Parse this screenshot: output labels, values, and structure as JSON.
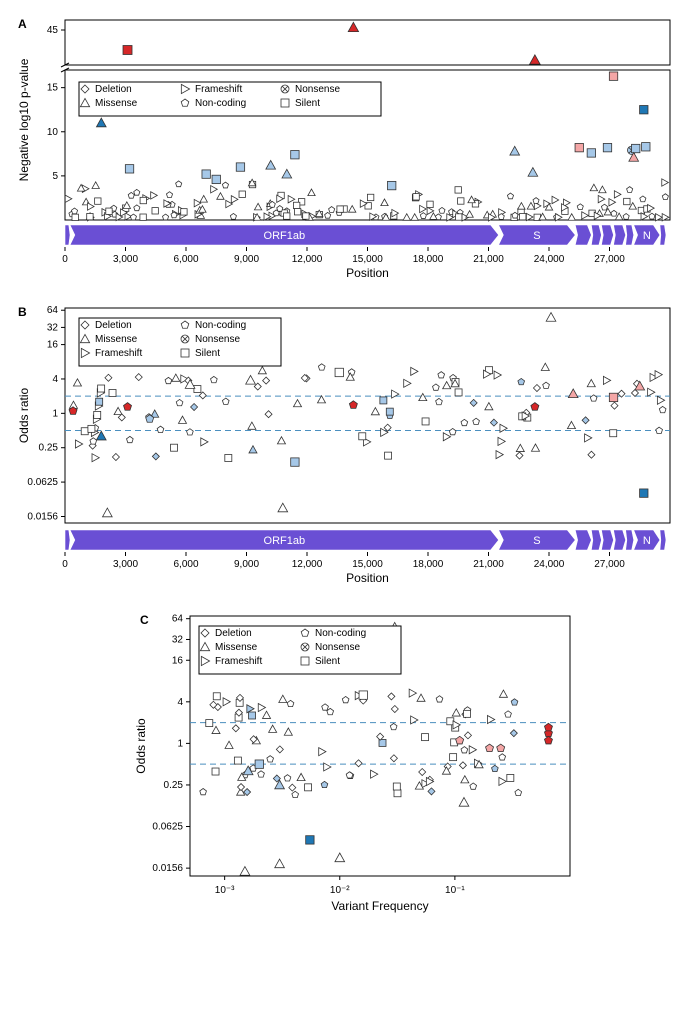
{
  "colors": {
    "red": "#d62728",
    "lightred": "#f4a6a6",
    "blue": "#1f77b4",
    "lightblue": "#a6c8e8",
    "gray": "#888888",
    "lightgray": "#cccccc",
    "white": "#ffffff",
    "black": "#000000",
    "purple": "#6a4fd4",
    "dashblue": "#4a8fbf",
    "border": "#000000"
  },
  "legend_items": [
    {
      "label": "Deletion",
      "marker": "diamond"
    },
    {
      "label": "Missense",
      "marker": "triangle"
    },
    {
      "label": "Frameshift",
      "marker": "rtriangle"
    },
    {
      "label": "Non-coding",
      "marker": "pentagon"
    },
    {
      "label": "Nonsense",
      "marker": "xcircle"
    },
    {
      "label": "Silent",
      "marker": "square"
    }
  ],
  "genes": [
    {
      "start": 0,
      "end": 250,
      "label": ""
    },
    {
      "start": 250,
      "end": 21500,
      "label": "ORF1ab"
    },
    {
      "start": 21500,
      "end": 25300,
      "label": "S"
    },
    {
      "start": 25300,
      "end": 26100,
      "label": ""
    },
    {
      "start": 26100,
      "end": 26600,
      "label": ""
    },
    {
      "start": 26600,
      "end": 27200,
      "label": ""
    },
    {
      "start": 27200,
      "end": 27800,
      "label": ""
    },
    {
      "start": 27800,
      "end": 28200,
      "label": ""
    },
    {
      "start": 28200,
      "end": 29500,
      "label": "N"
    },
    {
      "start": 29500,
      "end": 29800,
      "label": ""
    }
  ],
  "panelA": {
    "label": "A",
    "xlabel": "Position",
    "ylabel": "Negative log10 p-value",
    "xlim": [
      0,
      30000
    ],
    "xticks": [
      0,
      3000,
      6000,
      9000,
      12000,
      15000,
      18000,
      21000,
      24000,
      27000
    ],
    "yticks_upper": [
      45
    ],
    "yticks_lower": [
      5,
      10,
      15
    ],
    "break_y": 17,
    "points_upper": [
      {
        "x": 3100,
        "y": 41,
        "marker": "square",
        "fill": "red"
      },
      {
        "x": 14300,
        "y": 45.5,
        "marker": "triangle",
        "fill": "red"
      },
      {
        "x": 23300,
        "y": 39,
        "marker": "triangle",
        "fill": "red"
      }
    ],
    "points_lower": [
      {
        "x": 1800,
        "y": 11,
        "marker": "triangle",
        "fill": "blue"
      },
      {
        "x": 5700,
        "y": 12.5,
        "marker": "triangle",
        "fill": "blue"
      },
      {
        "x": 28700,
        "y": 12.5,
        "marker": "square",
        "fill": "blue"
      },
      {
        "x": 27200,
        "y": 16.3,
        "marker": "square",
        "fill": "lightred"
      },
      {
        "x": 25500,
        "y": 8.2,
        "marker": "square",
        "fill": "lightred"
      },
      {
        "x": 26900,
        "y": 8.2,
        "marker": "square",
        "fill": "lightblue"
      },
      {
        "x": 7000,
        "y": 5.2,
        "marker": "square",
        "fill": "lightblue"
      },
      {
        "x": 3200,
        "y": 5.8,
        "marker": "square",
        "fill": "lightblue"
      },
      {
        "x": 11000,
        "y": 5.2,
        "marker": "triangle",
        "fill": "lightblue"
      },
      {
        "x": 11400,
        "y": 7.4,
        "marker": "square",
        "fill": "lightblue"
      },
      {
        "x": 22300,
        "y": 7.8,
        "marker": "triangle",
        "fill": "lightblue"
      },
      {
        "x": 23200,
        "y": 5.4,
        "marker": "triangle",
        "fill": "lightblue"
      },
      {
        "x": 26100,
        "y": 7.6,
        "marker": "square",
        "fill": "lightblue"
      },
      {
        "x": 28800,
        "y": 8.3,
        "marker": "square",
        "fill": "lightblue"
      },
      {
        "x": 28100,
        "y": 7.9,
        "marker": "xcircle",
        "fill": "lightblue"
      },
      {
        "x": 28300,
        "y": 8.1,
        "marker": "square",
        "fill": "lightblue"
      },
      {
        "x": 28200,
        "y": 7.1,
        "marker": "triangle",
        "fill": "lightred"
      },
      {
        "x": 16200,
        "y": 3.9,
        "marker": "square",
        "fill": "lightblue"
      },
      {
        "x": 7500,
        "y": 4.6,
        "marker": "square",
        "fill": "lightblue"
      },
      {
        "x": 10200,
        "y": 6.2,
        "marker": "triangle",
        "fill": "lightblue"
      },
      {
        "x": 8700,
        "y": 6.0,
        "marker": "square",
        "fill": "lightblue"
      }
    ],
    "noise_count": 180
  },
  "panelB": {
    "label": "B",
    "xlabel": "Position",
    "ylabel": "Odds ratio",
    "xlim": [
      0,
      30000
    ],
    "xticks": [
      0,
      3000,
      6000,
      9000,
      12000,
      15000,
      18000,
      21000,
      24000,
      27000
    ],
    "yticks": [
      0.0156,
      0.0625,
      0.25,
      1,
      4,
      16,
      32,
      64
    ],
    "ytick_labels": [
      "0.0156",
      "0.0625",
      "0.25",
      "1",
      "4",
      "16",
      "32",
      "64"
    ],
    "hlines": [
      0.5,
      2
    ],
    "points": [
      {
        "x": 400,
        "y": 1.1,
        "marker": "pentagon",
        "fill": "red"
      },
      {
        "x": 3100,
        "y": 1.3,
        "marker": "pentagon",
        "fill": "red"
      },
      {
        "x": 14300,
        "y": 1.4,
        "marker": "pentagon",
        "fill": "red"
      },
      {
        "x": 23300,
        "y": 1.3,
        "marker": "pentagon",
        "fill": "red"
      },
      {
        "x": 1800,
        "y": 0.4,
        "marker": "triangle",
        "fill": "blue"
      },
      {
        "x": 4200,
        "y": 0.8,
        "marker": "pentagon",
        "fill": "lightblue"
      },
      {
        "x": 28700,
        "y": 0.04,
        "marker": "square",
        "fill": "blue"
      },
      {
        "x": 24100,
        "y": 48,
        "marker": "triangle",
        "fill": "white"
      },
      {
        "x": 2100,
        "y": 0.018,
        "marker": "triangle",
        "fill": "white"
      },
      {
        "x": 10800,
        "y": 0.022,
        "marker": "triangle",
        "fill": "white"
      },
      {
        "x": 25200,
        "y": 2.2,
        "marker": "triangle",
        "fill": "lightred"
      },
      {
        "x": 27200,
        "y": 1.9,
        "marker": "square",
        "fill": "lightred"
      },
      {
        "x": 11400,
        "y": 0.14,
        "marker": "square",
        "fill": "lightblue"
      },
      {
        "x": 13600,
        "y": 5.2,
        "marker": "square",
        "fill": "white"
      },
      {
        "x": 9200,
        "y": 3.8,
        "marker": "triangle",
        "fill": "white"
      },
      {
        "x": 6200,
        "y": 3.2,
        "marker": "triangle",
        "fill": "white"
      },
      {
        "x": 28500,
        "y": 3.0,
        "marker": "triangle",
        "fill": "lightred"
      }
    ],
    "noise_count": 120
  },
  "panelC": {
    "label": "C",
    "xlabel": "Variant Frequency",
    "ylabel": "Odds ratio",
    "xlim": [
      0.0005,
      1
    ],
    "xticks": [
      0.001,
      0.01,
      0.1
    ],
    "xtick_labels": [
      "10⁻³",
      "10⁻²",
      "10⁻¹"
    ],
    "yticks": [
      0.0156,
      0.0625,
      0.25,
      1,
      4,
      16,
      32,
      64
    ],
    "ytick_labels": [
      "0.0156",
      "0.0625",
      "0.25",
      "1",
      "4",
      "16",
      "32",
      "64"
    ],
    "hlines": [
      0.5,
      2
    ],
    "points": [
      {
        "x": 0.65,
        "y": 1.4,
        "marker": "pentagon",
        "fill": "red"
      },
      {
        "x": 0.65,
        "y": 1.7,
        "marker": "pentagon",
        "fill": "red"
      },
      {
        "x": 0.65,
        "y": 1.1,
        "marker": "pentagon",
        "fill": "red"
      },
      {
        "x": 0.2,
        "y": 0.85,
        "marker": "pentagon",
        "fill": "lightred"
      },
      {
        "x": 0.11,
        "y": 1.1,
        "marker": "pentagon",
        "fill": "lightred"
      },
      {
        "x": 0.25,
        "y": 0.85,
        "marker": "pentagon",
        "fill": "lightred"
      },
      {
        "x": 0.0055,
        "y": 0.04,
        "marker": "square",
        "fill": "blue"
      },
      {
        "x": 0.0016,
        "y": 0.4,
        "marker": "triangle",
        "fill": "lightblue"
      },
      {
        "x": 0.003,
        "y": 0.25,
        "marker": "triangle",
        "fill": "lightblue"
      },
      {
        "x": 0.002,
        "y": 0.5,
        "marker": "square",
        "fill": "lightblue"
      },
      {
        "x": 0.03,
        "y": 48,
        "marker": "triangle",
        "fill": "white"
      },
      {
        "x": 0.016,
        "y": 5.0,
        "marker": "square",
        "fill": "white"
      },
      {
        "x": 0.12,
        "y": 0.14,
        "marker": "triangle",
        "fill": "white"
      },
      {
        "x": 0.0015,
        "y": 0.014,
        "marker": "triangle",
        "fill": "white"
      },
      {
        "x": 0.003,
        "y": 0.018,
        "marker": "triangle",
        "fill": "white"
      },
      {
        "x": 0.01,
        "y": 0.022,
        "marker": "triangle",
        "fill": "white"
      }
    ],
    "noise_count": 100
  }
}
